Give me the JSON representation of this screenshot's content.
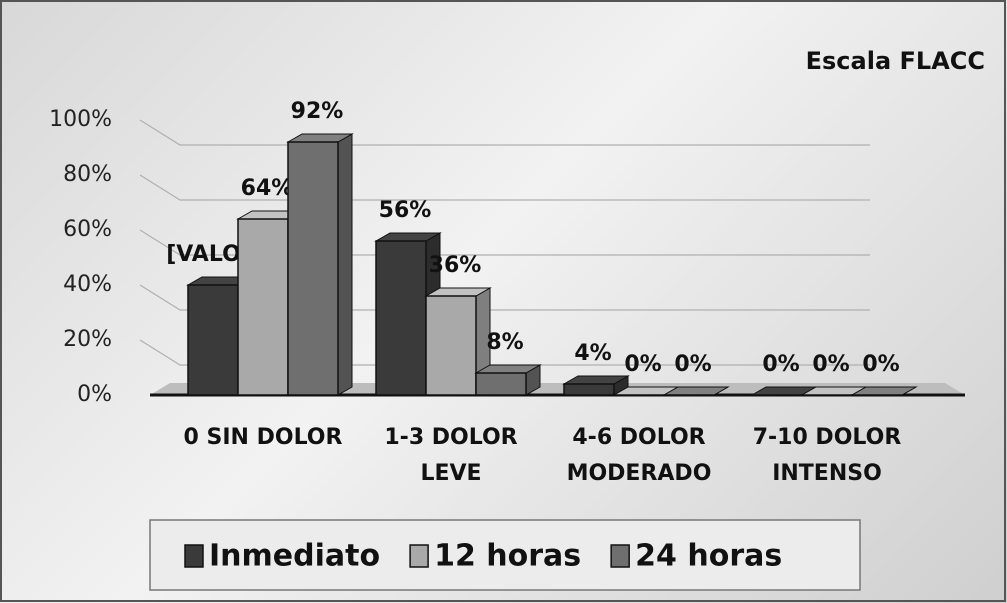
{
  "chart_data": {
    "type": "bar3d",
    "title": "Escala FLACC",
    "categories": [
      "0 SIN DOLOR",
      "1-3  DOLOR LEVE",
      "4-6  DOLOR MODERADO",
      "7-10 DOLOR INTENSO"
    ],
    "series": [
      {
        "name": "Inmediato",
        "color": "#3a3a3a",
        "values": [
          40,
          56,
          4,
          0
        ],
        "value_labels": [
          "[VALOR]",
          "56%",
          "4%",
          "0%"
        ]
      },
      {
        "name": "12 horas",
        "color": "#a9a9a9",
        "values": [
          64,
          36,
          0,
          0
        ],
        "value_labels": [
          "64%",
          "36%",
          "0%",
          "0%"
        ]
      },
      {
        "name": "24 horas",
        "color": "#6f6f6f",
        "values": [
          92,
          8,
          0,
          0
        ],
        "value_labels": [
          "92%",
          "8%",
          "0%",
          "0%"
        ]
      }
    ],
    "ylim": [
      0,
      100
    ],
    "yticks": [
      {
        "value": 0,
        "label": "0%"
      },
      {
        "value": 20,
        "label": "20%"
      },
      {
        "value": 40,
        "label": "40%"
      },
      {
        "value": 60,
        "label": "60%"
      },
      {
        "value": 80,
        "label": "80%"
      },
      {
        "value": 100,
        "label": "100%"
      }
    ],
    "grid": true
  }
}
